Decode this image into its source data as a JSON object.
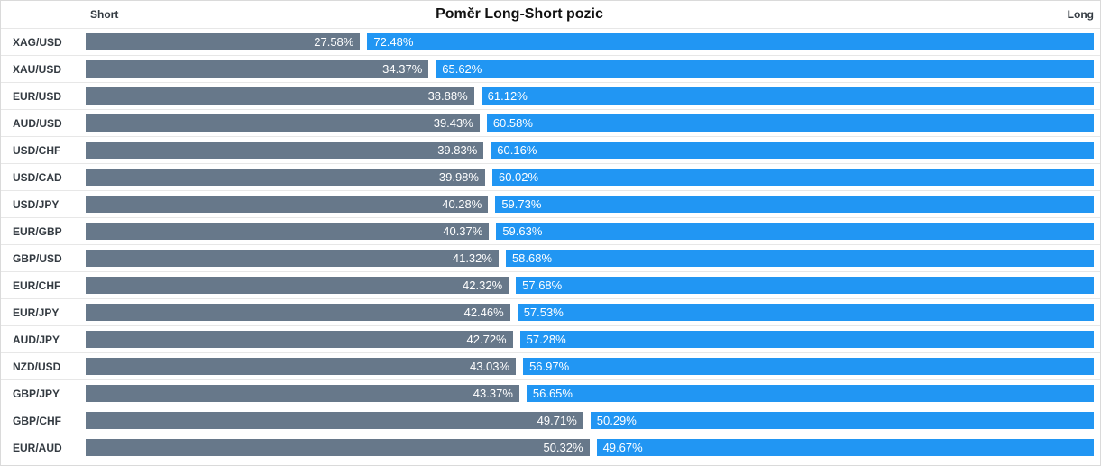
{
  "title": "Poměr Long-Short pozic",
  "axis_labels": {
    "left": "Short",
    "right": "Long"
  },
  "colors": {
    "short_bar": "#67788a",
    "long_bar": "#2196f3",
    "bar_text": "#ffffff",
    "label_text": "#333a41",
    "divider": "#e7e7e7",
    "border": "#dadada",
    "background": "#ffffff"
  },
  "chart_data": {
    "type": "bar",
    "orientation": "horizontal",
    "stacked": true,
    "title": "Poměr Long-Short pozic",
    "value_suffix": "%",
    "xlim": [
      0,
      100
    ],
    "legend_position": "top",
    "categories": [
      "XAG/USD",
      "XAU/USD",
      "EUR/USD",
      "AUD/USD",
      "USD/CHF",
      "USD/CAD",
      "USD/JPY",
      "EUR/GBP",
      "GBP/USD",
      "EUR/CHF",
      "EUR/JPY",
      "AUD/JPY",
      "NZD/USD",
      "GBP/JPY",
      "GBP/CHF",
      "EUR/AUD"
    ],
    "series": [
      {
        "name": "Short",
        "color": "#67788a",
        "values": [
          27.58,
          34.37,
          38.88,
          39.43,
          39.83,
          39.98,
          40.28,
          40.37,
          41.32,
          42.32,
          42.46,
          42.72,
          43.03,
          43.37,
          49.71,
          50.32
        ]
      },
      {
        "name": "Long",
        "color": "#2196f3",
        "values": [
          72.48,
          65.62,
          61.12,
          60.58,
          60.16,
          60.02,
          59.73,
          59.63,
          58.68,
          57.68,
          57.53,
          57.28,
          56.97,
          56.65,
          50.29,
          49.67
        ]
      }
    ]
  }
}
